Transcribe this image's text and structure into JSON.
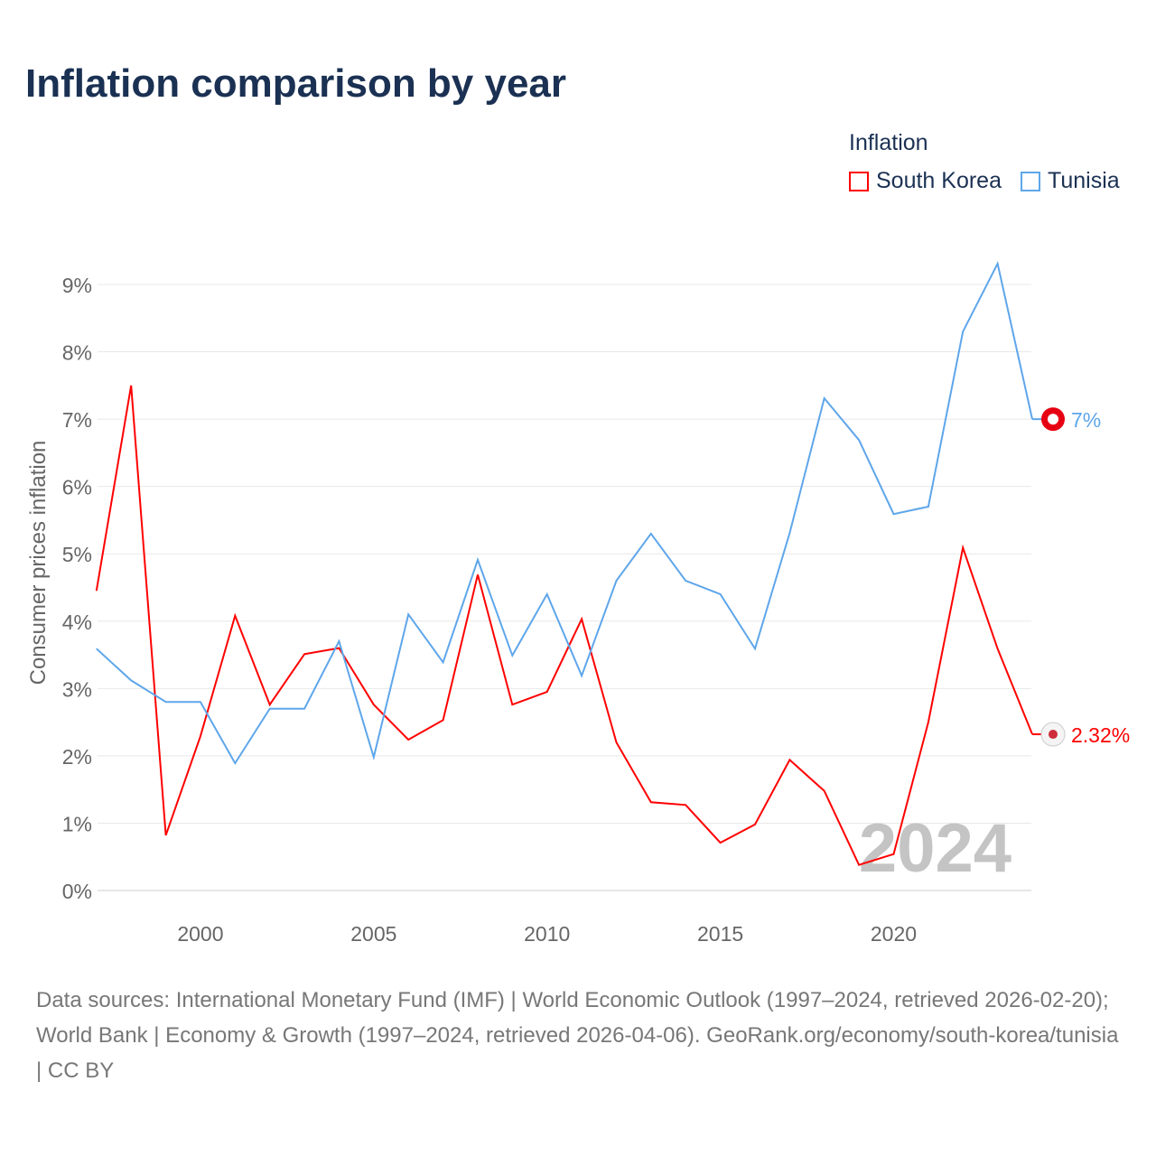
{
  "title": "Inflation comparison by year",
  "chart_data": {
    "type": "line",
    "title": "Inflation comparison by year",
    "ylabel": "Consumer prices inflation",
    "xlabel": "",
    "ylim": [
      0,
      9
    ],
    "yticks": [
      "0%",
      "1%",
      "2%",
      "3%",
      "4%",
      "5%",
      "6%",
      "7%",
      "8%",
      "9%"
    ],
    "xticks": [
      "2000",
      "2005",
      "2010",
      "2015",
      "2020"
    ],
    "x": [
      1997,
      1998,
      1999,
      2000,
      2001,
      2002,
      2003,
      2004,
      2005,
      2006,
      2007,
      2008,
      2009,
      2010,
      2011,
      2012,
      2013,
      2014,
      2015,
      2016,
      2017,
      2018,
      2019,
      2020,
      2021,
      2022,
      2023,
      2024
    ],
    "legend_title": "Inflation",
    "legend_position": "top-right",
    "watermark_year": "2024",
    "series": [
      {
        "name": "South Korea",
        "color": "#ff0000",
        "end_label": "2.32%",
        "values": [
          4.45,
          7.5,
          0.82,
          2.29,
          4.08,
          2.76,
          3.51,
          3.6,
          2.76,
          2.24,
          2.53,
          4.69,
          2.76,
          2.95,
          4.03,
          2.2,
          1.31,
          1.27,
          0.71,
          0.98,
          1.94,
          1.48,
          0.38,
          0.54,
          2.5,
          5.09,
          3.59,
          2.32
        ]
      },
      {
        "name": "Tunisia",
        "color": "#5ea6ea",
        "end_label": "7%",
        "values": [
          3.59,
          3.12,
          2.8,
          2.8,
          1.89,
          2.7,
          2.7,
          3.7,
          1.98,
          4.1,
          3.39,
          4.91,
          3.49,
          4.4,
          3.19,
          4.6,
          5.3,
          4.6,
          4.4,
          3.59,
          5.31,
          7.31,
          6.69,
          5.59,
          5.7,
          8.3,
          9.31,
          7.0
        ]
      }
    ]
  },
  "source": "Data sources: International Monetary Fund (IMF) | World Economic Outlook (1997–2024, retrieved 2026-02-20); World Bank | Economy & Growth (1997–2024, retrieved 2026-04-06). GeoRank.org/economy/south-korea/tunisia | CC BY"
}
